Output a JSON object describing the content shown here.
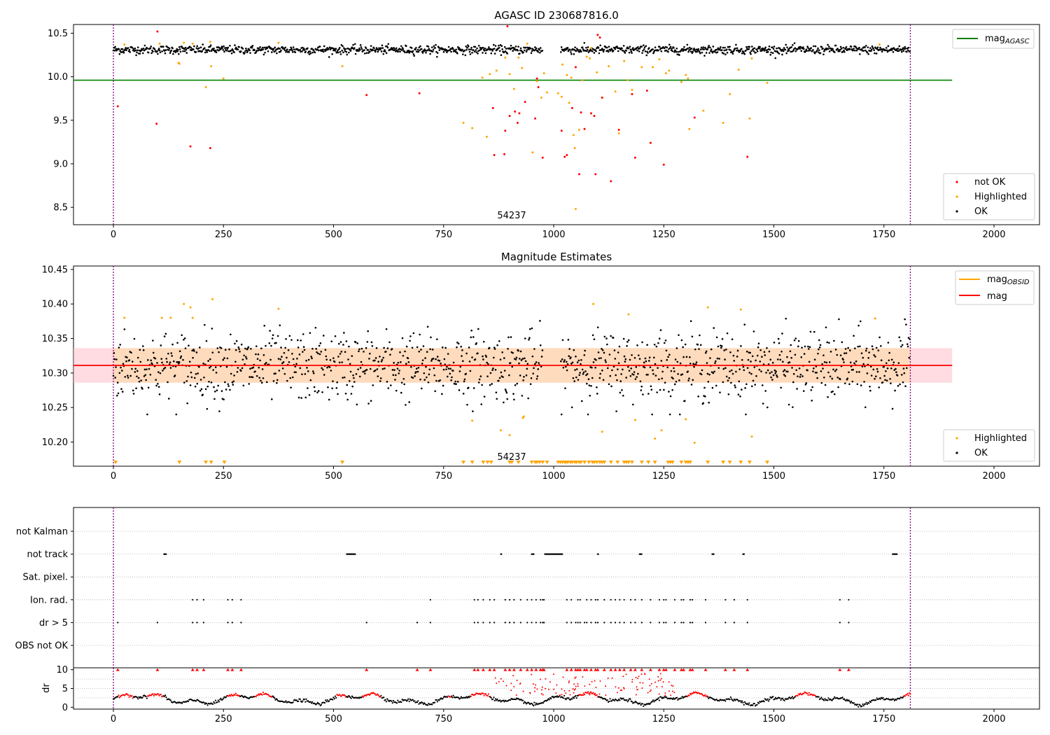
{
  "figure": {
    "background": "#ffffff",
    "colors": {
      "ok": "#000000",
      "highlighted": "#ffa500",
      "not_ok": "#ff0000",
      "mag_agasc_line": "#008000",
      "mag_line": "#ff0000",
      "mag_obsid_line": "#ffa500",
      "band_fill": "#ffc0cb",
      "band_fill_overlap": "#ffdab9",
      "obs_boundary": "#800080",
      "grid": "#b0b0b0"
    }
  },
  "chart_data": [
    {
      "type": "scatter",
      "title": "AGASC ID 230687816.0",
      "annotation": "54237",
      "xlim": [
        -90,
        2110
      ],
      "ylim": [
        8.3,
        10.6
      ],
      "xticks": [
        "0",
        "250",
        "500",
        "750",
        "1000",
        "1250",
        "1500",
        "1750",
        "2000"
      ],
      "yticks": [
        "8.5",
        "9.0",
        "9.5",
        "10.0",
        "10.5"
      ],
      "obs_boundaries": [
        0,
        1810
      ],
      "hlines": [
        {
          "name": "mag_AGASC",
          "y": 9.96,
          "x": [
            -90,
            1905
          ],
          "color": "#008000"
        }
      ],
      "legend_upper": [
        "mag_AGASC"
      ],
      "legend_lower": [
        "not OK",
        "Highlighted",
        "OK"
      ],
      "series": [
        {
          "name": "OK",
          "description": "dense band of ok points",
          "x_range": [
            0,
            1810
          ],
          "y_mean": 10.31,
          "y_spread": 0.03,
          "gap": [
            975,
            1015
          ]
        },
        {
          "name": "Highlighted",
          "points": [
            [
              25,
              10.37
            ],
            [
              105,
              10.38
            ],
            [
              148,
              10.16
            ],
            [
              150,
              10.15
            ],
            [
              160,
              10.39
            ],
            [
              180,
              10.38
            ],
            [
              210,
              9.88
            ],
            [
              220,
              10.4
            ],
            [
              222,
              10.12
            ],
            [
              250,
              9.98
            ],
            [
              375,
              10.39
            ],
            [
              520,
              10.12
            ],
            [
              795,
              9.47
            ],
            [
              815,
              9.41
            ],
            [
              838,
              9.99
            ],
            [
              848,
              9.31
            ],
            [
              855,
              10.03
            ],
            [
              870,
              10.07
            ],
            [
              890,
              10.22
            ],
            [
              900,
              10.03
            ],
            [
              910,
              9.86
            ],
            [
              920,
              10.22
            ],
            [
              928,
              10.1
            ],
            [
              940,
              10.38
            ],
            [
              952,
              9.13
            ],
            [
              962,
              9.95
            ],
            [
              972,
              9.76
            ],
            [
              978,
              10.04
            ],
            [
              985,
              9.82
            ],
            [
              1010,
              9.81
            ],
            [
              1018,
              9.77
            ],
            [
              1020,
              10.14
            ],
            [
              1030,
              10.02
            ],
            [
              1035,
              9.7
            ],
            [
              1040,
              9.99
            ],
            [
              1045,
              9.33
            ],
            [
              1048,
              9.18
            ],
            [
              1050,
              8.48
            ],
            [
              1058,
              9.39
            ],
            [
              1065,
              9.96
            ],
            [
              1075,
              10.23
            ],
            [
              1082,
              10.21
            ],
            [
              1085,
              10.33
            ],
            [
              1098,
              10.05
            ],
            [
              1110,
              9.76
            ],
            [
              1125,
              10.12
            ],
            [
              1140,
              9.83
            ],
            [
              1148,
              9.35
            ],
            [
              1160,
              10.18
            ],
            [
              1168,
              9.96
            ],
            [
              1178,
              9.85
            ],
            [
              1200,
              10.11
            ],
            [
              1225,
              10.11
            ],
            [
              1240,
              10.2
            ],
            [
              1255,
              10.04
            ],
            [
              1262,
              10.07
            ],
            [
              1290,
              9.94
            ],
            [
              1300,
              10.02
            ],
            [
              1305,
              9.98
            ],
            [
              1308,
              9.4
            ],
            [
              1340,
              9.61
            ],
            [
              1385,
              9.47
            ],
            [
              1400,
              9.8
            ],
            [
              1420,
              10.08
            ],
            [
              1445,
              9.52
            ],
            [
              1450,
              10.21
            ],
            [
              1485,
              9.93
            ],
            [
              1740,
              10.37
            ]
          ]
        },
        {
          "name": "not OK",
          "points": [
            [
              10,
              9.66
            ],
            [
              100,
              10.52
            ],
            [
              98,
              9.46
            ],
            [
              175,
              9.2
            ],
            [
              220,
              9.18
            ],
            [
              575,
              9.79
            ],
            [
              695,
              9.81
            ],
            [
              862,
              9.64
            ],
            [
              865,
              9.1
            ],
            [
              888,
              9.11
            ],
            [
              890,
              9.38
            ],
            [
              895,
              10.58
            ],
            [
              900,
              9.55
            ],
            [
              912,
              9.6
            ],
            [
              918,
              9.47
            ],
            [
              922,
              9.58
            ],
            [
              935,
              9.71
            ],
            [
              958,
              9.52
            ],
            [
              962,
              9.98
            ],
            [
              965,
              9.88
            ],
            [
              975,
              9.07
            ],
            [
              1018,
              9.38
            ],
            [
              1025,
              9.08
            ],
            [
              1030,
              9.1
            ],
            [
              1042,
              9.64
            ],
            [
              1050,
              10.11
            ],
            [
              1058,
              8.88
            ],
            [
              1062,
              9.59
            ],
            [
              1070,
              9.4
            ],
            [
              1085,
              9.58
            ],
            [
              1092,
              9.55
            ],
            [
              1095,
              8.88
            ],
            [
              1100,
              10.48
            ],
            [
              1105,
              10.45
            ],
            [
              1110,
              9.76
            ],
            [
              1130,
              8.8
            ],
            [
              1148,
              9.39
            ],
            [
              1178,
              9.8
            ],
            [
              1185,
              9.07
            ],
            [
              1212,
              9.84
            ],
            [
              1220,
              9.24
            ],
            [
              1250,
              8.99
            ],
            [
              1320,
              9.53
            ],
            [
              1440,
              9.08
            ]
          ]
        }
      ]
    },
    {
      "type": "scatter",
      "title": "Magnitude Estimates",
      "annotation": "54237",
      "xlim": [
        -90,
        2110
      ],
      "ylim": [
        10.165,
        10.455
      ],
      "xticks": [
        "0",
        "250",
        "500",
        "750",
        "1000",
        "1250",
        "1500",
        "1750",
        "2000"
      ],
      "yticks": [
        "10.20",
        "10.25",
        "10.30",
        "10.35",
        "10.40",
        "10.45"
      ],
      "obs_boundaries": [
        0,
        1810
      ],
      "bands": [
        {
          "y": [
            10.286,
            10.336
          ],
          "x": [
            -90,
            1905
          ],
          "color": "#ffc0cb"
        },
        {
          "y": [
            10.286,
            10.336
          ],
          "x": [
            0,
            1810
          ],
          "color": "#ffdab9"
        }
      ],
      "hlines": [
        {
          "name": "mag",
          "y": 10.311,
          "x": [
            -90,
            1905
          ],
          "color": "#ff0000"
        },
        {
          "name": "mag_OBSID",
          "y": 10.311,
          "x": [
            0,
            1810
          ],
          "color": "#ffa500"
        }
      ],
      "legend_upper": [
        "mag_OBSID",
        "mag"
      ],
      "legend_lower": [
        "Highlighted",
        "OK"
      ],
      "series": [
        {
          "name": "OK",
          "description": "dense scatter",
          "x_range": [
            0,
            1810
          ],
          "y_mean": 10.31,
          "y_spread": 0.025
        },
        {
          "name": "Highlighted",
          "points": [
            [
              25,
              10.38
            ],
            [
              110,
              10.38
            ],
            [
              130,
              10.38
            ],
            [
              160,
              10.4
            ],
            [
              175,
              10.395
            ],
            [
              180,
              10.38
            ],
            [
              225,
              10.407
            ],
            [
              375,
              10.393
            ],
            [
              815,
              10.231
            ],
            [
              880,
              10.217
            ],
            [
              900,
              10.21
            ],
            [
              930,
              10.235
            ],
            [
              932,
              10.237
            ],
            [
              1090,
              10.4
            ],
            [
              1110,
              10.215
            ],
            [
              1170,
              10.385
            ],
            [
              1185,
              10.232
            ],
            [
              1230,
              10.205
            ],
            [
              1245,
              10.217
            ],
            [
              1300,
              10.233
            ],
            [
              1320,
              10.199
            ],
            [
              1350,
              10.395
            ],
            [
              1425,
              10.392
            ],
            [
              1450,
              10.208
            ],
            [
              1730,
              10.379
            ]
          ]
        },
        {
          "name": "Highlighted (clipped)",
          "x": [
            5,
            150,
            210,
            222,
            252,
            520,
            795,
            815,
            840,
            850,
            858,
            900,
            905,
            920,
            950,
            958,
            962,
            968,
            975,
            985,
            1010,
            1015,
            1020,
            1025,
            1028,
            1032,
            1038,
            1042,
            1048,
            1052,
            1058,
            1062,
            1070,
            1080,
            1088,
            1092,
            1098,
            1105,
            1110,
            1115,
            1130,
            1145,
            1160,
            1165,
            1170,
            1178,
            1200,
            1215,
            1230,
            1260,
            1265,
            1270,
            1290,
            1300,
            1305,
            1310,
            1350,
            1385,
            1400,
            1425,
            1445,
            1485
          ]
        }
      ]
    },
    {
      "type": "scatter",
      "title": "",
      "xlim": [
        -90,
        2110
      ],
      "categories": [
        "not Kalman",
        "not track",
        "Sat. pixel.",
        "Ion. rad.",
        "dr > 5",
        "OBS not OK"
      ],
      "obs_boundaries": [
        0,
        1810
      ],
      "flags": {
        "not track": [
          [
            115,
            120
          ],
          [
            530,
            550
          ],
          [
            880,
            882
          ],
          [
            950,
            955
          ],
          [
            980,
            1020
          ],
          [
            1100,
            1102
          ],
          [
            1195,
            1200
          ],
          [
            1360,
            1364
          ],
          [
            1430,
            1433
          ],
          [
            1770,
            1780
          ]
        ],
        "Ion. rad.": [
          180,
          190,
          205,
          260,
          270,
          290,
          720,
          820,
          828,
          840,
          855,
          865,
          890,
          900,
          910,
          925,
          940,
          950,
          960,
          970,
          975,
          978,
          1030,
          1040,
          1055,
          1060,
          1075,
          1085,
          1095,
          1100,
          1115,
          1130,
          1140,
          1150,
          1160,
          1175,
          1185,
          1200,
          1220,
          1240,
          1250,
          1255,
          1275,
          1290,
          1295,
          1310,
          1315,
          1345,
          1390,
          1410,
          1440,
          1650,
          1670
        ],
        "dr > 5": [
          10,
          100,
          180,
          190,
          205,
          260,
          270,
          290,
          575,
          690,
          720,
          820,
          828,
          840,
          855,
          865,
          890,
          900,
          910,
          925,
          940,
          950,
          960,
          970,
          975,
          978,
          1030,
          1040,
          1050,
          1055,
          1060,
          1070,
          1075,
          1085,
          1095,
          1100,
          1115,
          1130,
          1140,
          1150,
          1160,
          1175,
          1185,
          1200,
          1220,
          1240,
          1250,
          1255,
          1275,
          1290,
          1295,
          1310,
          1315,
          1345,
          1390,
          1410,
          1440,
          1650,
          1670
        ]
      }
    },
    {
      "type": "line",
      "title": "",
      "ylabel": "dr",
      "xlim": [
        -90,
        2110
      ],
      "ylim": [
        -0.5,
        10.5
      ],
      "xticks": [
        "0",
        "250",
        "500",
        "750",
        "1000",
        "1250",
        "1500",
        "1750",
        "2000"
      ],
      "yticks": [
        "0",
        "5",
        "10"
      ],
      "obs_boundaries": [
        0,
        1810
      ],
      "series": [
        {
          "name": "dr (OK)",
          "description": "oscillating around 2 with humps to 4",
          "x_range": [
            0,
            1810
          ]
        },
        {
          "name": "dr (not OK)",
          "description": "red points, clipped at 10 for many flagged times",
          "x_range": [
            0,
            1810
          ]
        }
      ]
    }
  ]
}
